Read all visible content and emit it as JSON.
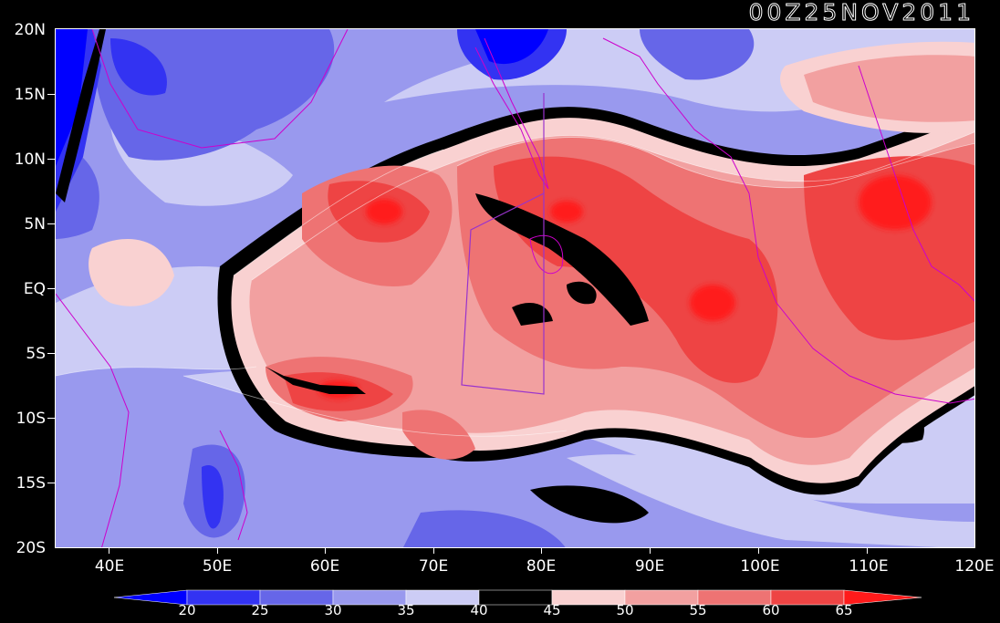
{
  "title": "00Z25NOV2011",
  "lat_labels": [
    "20N",
    "15N",
    "10N",
    "5N",
    "EQ",
    "5S",
    "10S",
    "15S",
    "20S"
  ],
  "lon_labels": [
    "40E",
    "50E",
    "60E",
    "70E",
    "80E",
    "90E",
    "100E",
    "110E",
    "120E"
  ],
  "colorbar": {
    "labels": [
      "20",
      "25",
      "30",
      "35",
      "40",
      "45",
      "50",
      "55",
      "60",
      "65"
    ],
    "colors": [
      "#0000ff",
      "#3333f2",
      "#6666e8",
      "#9999ee",
      "#ccccf5",
      "#000000",
      "#f9d1d1",
      "#f2a0a0",
      "#ee7373",
      "#ee4444",
      "#ff1a1a"
    ]
  },
  "map": {
    "domain": "Indian Ocean",
    "lon_range": [
      "35E",
      "120E"
    ],
    "lat_range": [
      "20S",
      "20N"
    ]
  }
}
